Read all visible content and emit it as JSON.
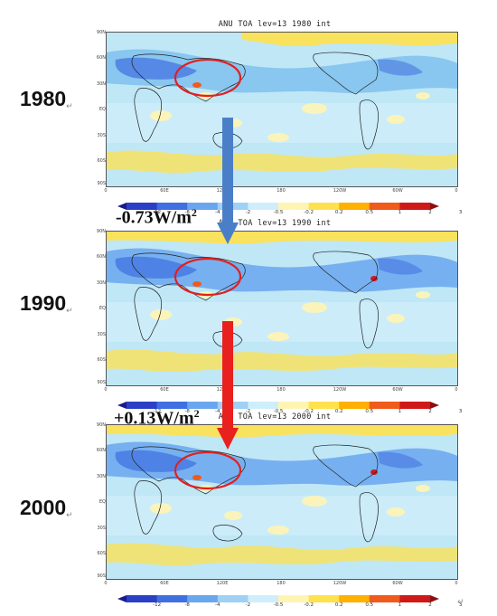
{
  "panels": [
    {
      "title": "ANU TOA lev=13 1980 int",
      "year": "1980"
    },
    {
      "title": "ANU TOA lev=13 1990 int",
      "year": "1990"
    },
    {
      "title": "ANU TOA lev=13 2000 int",
      "year": "2000"
    }
  ],
  "changes": [
    {
      "label": "-0.73W/m",
      "sup": "2",
      "arrow_color": "#4a7fc8"
    },
    {
      "label": "+0.13W/m",
      "sup": "2",
      "arrow_color": "#e8201e"
    }
  ],
  "lat_labels": [
    "90N",
    "60N",
    "30N",
    "EQ",
    "30S",
    "60S",
    "90S"
  ],
  "lon_labels": [
    "0",
    "60E",
    "120E",
    "180",
    "120W",
    "60W",
    "0"
  ],
  "colorbar": {
    "labels": [
      "-12",
      "-8",
      "-4",
      "-2",
      "-0.5",
      "-0.2",
      "0.2",
      "0.5",
      "1",
      "2",
      "3"
    ],
    "colors": [
      "#1a1a8c",
      "#2b3fc6",
      "#3f6fe0",
      "#6aa6ee",
      "#9fd0f5",
      "#cfeefb",
      "#fff5b3",
      "#ffe14d",
      "#ffb000",
      "#f05a1a",
      "#d01818",
      "#8b0f0f"
    ]
  },
  "highlight_color": "#e02020",
  "return_mark": "↵"
}
